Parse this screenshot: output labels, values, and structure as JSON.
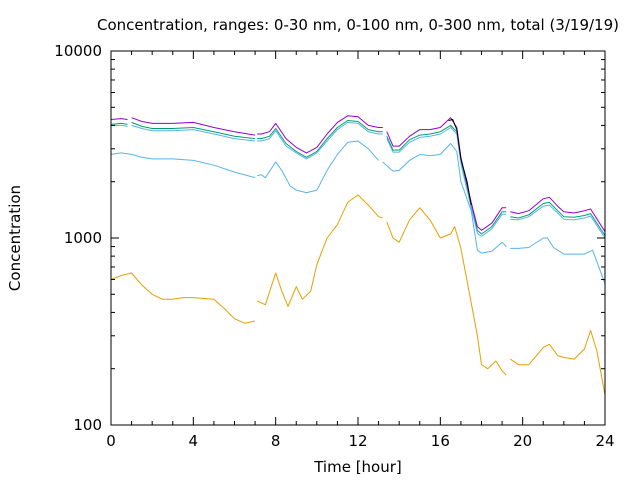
{
  "chart_data": {
    "type": "line",
    "title": "Concentration, ranges: 0-30 nm, 0-100 nm, 0-300 nm, total (3/19/19)",
    "xlabel": "Time [hour]",
    "ylabel": "Concentration",
    "xlim": [
      0,
      24
    ],
    "ylim": [
      100,
      10000
    ],
    "yscale": "log",
    "grid": false,
    "x_ticks": [
      0,
      4,
      8,
      12,
      16,
      20,
      24
    ],
    "y_ticks": [
      100,
      1000,
      10000
    ],
    "series": [
      {
        "color": "#e69f00",
        "segments": [
          [
            [
              0,
              600
            ],
            [
              0.5,
              630
            ],
            [
              1,
              650
            ],
            [
              1.5,
              560
            ],
            [
              2,
              500
            ],
            [
              2.5,
              470
            ],
            [
              3,
              470
            ],
            [
              3.5,
              480
            ],
            [
              4,
              480
            ],
            [
              5,
              470
            ],
            [
              5.5,
              420
            ],
            [
              6,
              370
            ],
            [
              6.5,
              350
            ],
            [
              7,
              360
            ]
          ],
          [
            [
              7.1,
              460
            ],
            [
              7.5,
              440
            ],
            [
              8,
              650
            ],
            [
              8.3,
              520
            ],
            [
              8.6,
              430
            ],
            [
              9,
              550
            ],
            [
              9.3,
              470
            ],
            [
              9.7,
              520
            ],
            [
              10,
              720
            ],
            [
              10.5,
              1000
            ],
            [
              11,
              1180
            ],
            [
              11.5,
              1550
            ],
            [
              12,
              1700
            ],
            [
              12.5,
              1500
            ],
            [
              13,
              1300
            ],
            [
              13.2,
              1280
            ]
          ],
          [
            [
              13.4,
              1220
            ],
            [
              13.7,
              1000
            ],
            [
              14,
              950
            ],
            [
              14.5,
              1250
            ],
            [
              15,
              1450
            ],
            [
              15.5,
              1250
            ],
            [
              16,
              1000
            ],
            [
              16.5,
              1050
            ],
            [
              16.7,
              1150
            ],
            [
              17,
              880
            ],
            [
              17.5,
              450
            ],
            [
              17.8,
              300
            ],
            [
              18,
              210
            ],
            [
              18.3,
              200
            ],
            [
              18.7,
              220
            ],
            [
              19,
              195
            ],
            [
              19.2,
              185
            ]
          ],
          [
            [
              19.4,
              225
            ],
            [
              19.8,
              210
            ],
            [
              20.3,
              210
            ],
            [
              21,
              260
            ],
            [
              21.3,
              270
            ],
            [
              21.7,
              235
            ],
            [
              22,
              230
            ],
            [
              22.5,
              225
            ],
            [
              23,
              255
            ],
            [
              23.3,
              320
            ],
            [
              23.6,
              250
            ],
            [
              24,
              145
            ]
          ]
        ]
      },
      {
        "color": "#56b4e9",
        "segments": [
          [
            [
              0,
              2800
            ],
            [
              0.5,
              2850
            ],
            [
              1,
              2800
            ],
            [
              1.5,
              2700
            ],
            [
              2,
              2650
            ],
            [
              3,
              2650
            ],
            [
              4,
              2600
            ],
            [
              5,
              2450
            ],
            [
              6,
              2250
            ],
            [
              7,
              2100
            ]
          ],
          [
            [
              7.1,
              2150
            ],
            [
              7.3,
              2180
            ],
            [
              7.5,
              2100
            ],
            [
              8,
              2550
            ],
            [
              8.3,
              2300
            ],
            [
              8.7,
              1900
            ],
            [
              9,
              1800
            ],
            [
              9.5,
              1750
            ],
            [
              10,
              1800
            ],
            [
              10.5,
              2300
            ],
            [
              11,
              2800
            ],
            [
              11.5,
              3250
            ],
            [
              12,
              3300
            ],
            [
              12.5,
              3000
            ],
            [
              13,
              2600
            ]
          ],
          [
            [
              13.2,
              2550
            ],
            [
              13.7,
              2280
            ],
            [
              14,
              2300
            ],
            [
              14.5,
              2600
            ],
            [
              15,
              2800
            ],
            [
              15.5,
              2750
            ],
            [
              16,
              2800
            ],
            [
              16.5,
              3200
            ],
            [
              16.8,
              2900
            ],
            [
              17,
              2000
            ],
            [
              17.5,
              1400
            ],
            [
              17.8,
              860
            ],
            [
              18,
              830
            ],
            [
              18.5,
              850
            ],
            [
              19,
              950
            ],
            [
              19.2,
              900
            ]
          ],
          [
            [
              19.4,
              880
            ],
            [
              19.8,
              880
            ],
            [
              20.3,
              890
            ],
            [
              21,
              1000
            ],
            [
              21.2,
              1000
            ],
            [
              21.5,
              890
            ],
            [
              22,
              820
            ],
            [
              22.5,
              820
            ],
            [
              23,
              820
            ],
            [
              23.4,
              860
            ],
            [
              24,
              570
            ]
          ]
        ]
      },
      {
        "color": "#009e73",
        "segments": [
          [
            [
              0,
              4050
            ],
            [
              0.5,
              4100
            ],
            [
              0.8,
              4050
            ]
          ],
          [
            [
              1,
              4150
            ],
            [
              1.5,
              3950
            ],
            [
              2,
              3850
            ],
            [
              3,
              3850
            ],
            [
              4,
              3900
            ],
            [
              5,
              3700
            ],
            [
              6,
              3500
            ],
            [
              7,
              3400
            ]
          ],
          [
            [
              7.1,
              3400
            ],
            [
              7.3,
              3400
            ],
            [
              7.7,
              3500
            ],
            [
              8,
              3850
            ],
            [
              8.5,
              3200
            ],
            [
              9,
              2900
            ],
            [
              9.5,
              2700
            ],
            [
              10,
              2900
            ],
            [
              10.5,
              3400
            ],
            [
              11,
              3900
            ],
            [
              11.5,
              4250
            ],
            [
              12,
              4200
            ],
            [
              12.5,
              3800
            ],
            [
              13,
              3700
            ],
            [
              13.2,
              3700
            ]
          ],
          [
            [
              13.4,
              3500
            ],
            [
              13.7,
              2950
            ],
            [
              14,
              2950
            ],
            [
              14.5,
              3350
            ],
            [
              15,
              3550
            ],
            [
              15.5,
              3600
            ],
            [
              16,
              3700
            ],
            [
              16.5,
              4000
            ],
            [
              16.8,
              3700
            ],
            [
              17,
              2600
            ],
            [
              17.5,
              1500
            ],
            [
              17.8,
              1100
            ],
            [
              18,
              1050
            ],
            [
              18.5,
              1150
            ],
            [
              19,
              1380
            ],
            [
              19.2,
              1380
            ]
          ],
          [
            [
              19.4,
              1300
            ],
            [
              19.8,
              1280
            ],
            [
              20.3,
              1330
            ],
            [
              21,
              1530
            ],
            [
              21.3,
              1550
            ],
            [
              21.7,
              1400
            ],
            [
              22,
              1300
            ],
            [
              22.5,
              1290
            ],
            [
              23,
              1320
            ],
            [
              23.3,
              1350
            ],
            [
              24,
              1030
            ]
          ]
        ]
      },
      {
        "color": "#56b4e9",
        "segments": [
          [
            [
              0,
              4000
            ],
            [
              0.5,
              4000
            ],
            [
              0.8,
              3950
            ]
          ],
          [
            [
              1,
              4000
            ],
            [
              1.5,
              3850
            ],
            [
              2,
              3750
            ],
            [
              3,
              3750
            ],
            [
              4,
              3800
            ],
            [
              5,
              3600
            ],
            [
              6,
              3400
            ],
            [
              7,
              3300
            ]
          ],
          [
            [
              7.1,
              3300
            ],
            [
              7.3,
              3300
            ],
            [
              7.7,
              3400
            ],
            [
              8,
              3750
            ],
            [
              8.5,
              3100
            ],
            [
              9,
              2850
            ],
            [
              9.5,
              2650
            ],
            [
              10,
              2850
            ],
            [
              10.5,
              3300
            ],
            [
              11,
              3800
            ],
            [
              11.5,
              4150
            ],
            [
              12,
              4100
            ],
            [
              12.5,
              3700
            ],
            [
              13,
              3600
            ],
            [
              13.2,
              3600
            ]
          ],
          [
            [
              13.4,
              3400
            ],
            [
              13.7,
              2880
            ],
            [
              14,
              2880
            ],
            [
              14.5,
              3250
            ],
            [
              15,
              3450
            ],
            [
              15.5,
              3500
            ],
            [
              16,
              3600
            ],
            [
              16.5,
              3900
            ],
            [
              16.8,
              3600
            ],
            [
              17,
              2500
            ],
            [
              17.5,
              1450
            ],
            [
              17.8,
              1060
            ],
            [
              18,
              1020
            ],
            [
              18.5,
              1120
            ],
            [
              19,
              1340
            ],
            [
              19.2,
              1340
            ]
          ],
          [
            [
              19.4,
              1260
            ],
            [
              19.8,
              1250
            ],
            [
              20.3,
              1300
            ],
            [
              21,
              1480
            ],
            [
              21.3,
              1500
            ],
            [
              21.7,
              1360
            ],
            [
              22,
              1260
            ],
            [
              22.5,
              1250
            ],
            [
              23,
              1280
            ],
            [
              23.3,
              1310
            ],
            [
              24,
              1000
            ]
          ]
        ]
      },
      {
        "color": "#9400d3",
        "segments": [
          [
            [
              0,
              4300
            ],
            [
              0.5,
              4350
            ],
            [
              0.8,
              4300
            ]
          ],
          [
            [
              1,
              4400
            ],
            [
              1.5,
              4200
            ],
            [
              2,
              4100
            ],
            [
              3,
              4100
            ],
            [
              4,
              4150
            ],
            [
              5,
              3900
            ],
            [
              6,
              3700
            ],
            [
              7,
              3550
            ]
          ],
          [
            [
              7.1,
              3600
            ],
            [
              7.3,
              3600
            ],
            [
              7.7,
              3700
            ],
            [
              8,
              4100
            ],
            [
              8.5,
              3400
            ],
            [
              9,
              3050
            ],
            [
              9.5,
              2850
            ],
            [
              10,
              3050
            ],
            [
              10.5,
              3600
            ],
            [
              11,
              4150
            ],
            [
              11.5,
              4500
            ],
            [
              12,
              4450
            ],
            [
              12.5,
              4000
            ],
            [
              13,
              3900
            ],
            [
              13.2,
              3900
            ]
          ],
          [
            [
              13.4,
              3700
            ],
            [
              13.7,
              3100
            ],
            [
              14,
              3100
            ],
            [
              14.5,
              3500
            ],
            [
              15,
              3800
            ],
            [
              15.5,
              3800
            ],
            [
              16,
              3900
            ],
            [
              16.5,
              4400
            ],
            [
              16.8,
              3900
            ],
            [
              17,
              2700
            ],
            [
              17.5,
              1550
            ],
            [
              17.8,
              1150
            ],
            [
              18,
              1100
            ],
            [
              18.5,
              1200
            ],
            [
              19,
              1450
            ],
            [
              19.2,
              1450
            ]
          ],
          [
            [
              19.4,
              1380
            ],
            [
              19.8,
              1350
            ],
            [
              20.3,
              1400
            ],
            [
              21,
              1620
            ],
            [
              21.3,
              1650
            ],
            [
              21.7,
              1480
            ],
            [
              22,
              1380
            ],
            [
              22.5,
              1360
            ],
            [
              23,
              1400
            ],
            [
              23.3,
              1430
            ],
            [
              24,
              1080
            ]
          ]
        ]
      },
      {
        "color": "#000000",
        "segments": [
          [
            [
              16.4,
              4250
            ],
            [
              16.6,
              4300
            ],
            [
              16.8,
              3800
            ],
            [
              17,
              2650
            ],
            [
              17.3,
              2000
            ],
            [
              17.5,
              1500
            ]
          ]
        ]
      }
    ]
  }
}
